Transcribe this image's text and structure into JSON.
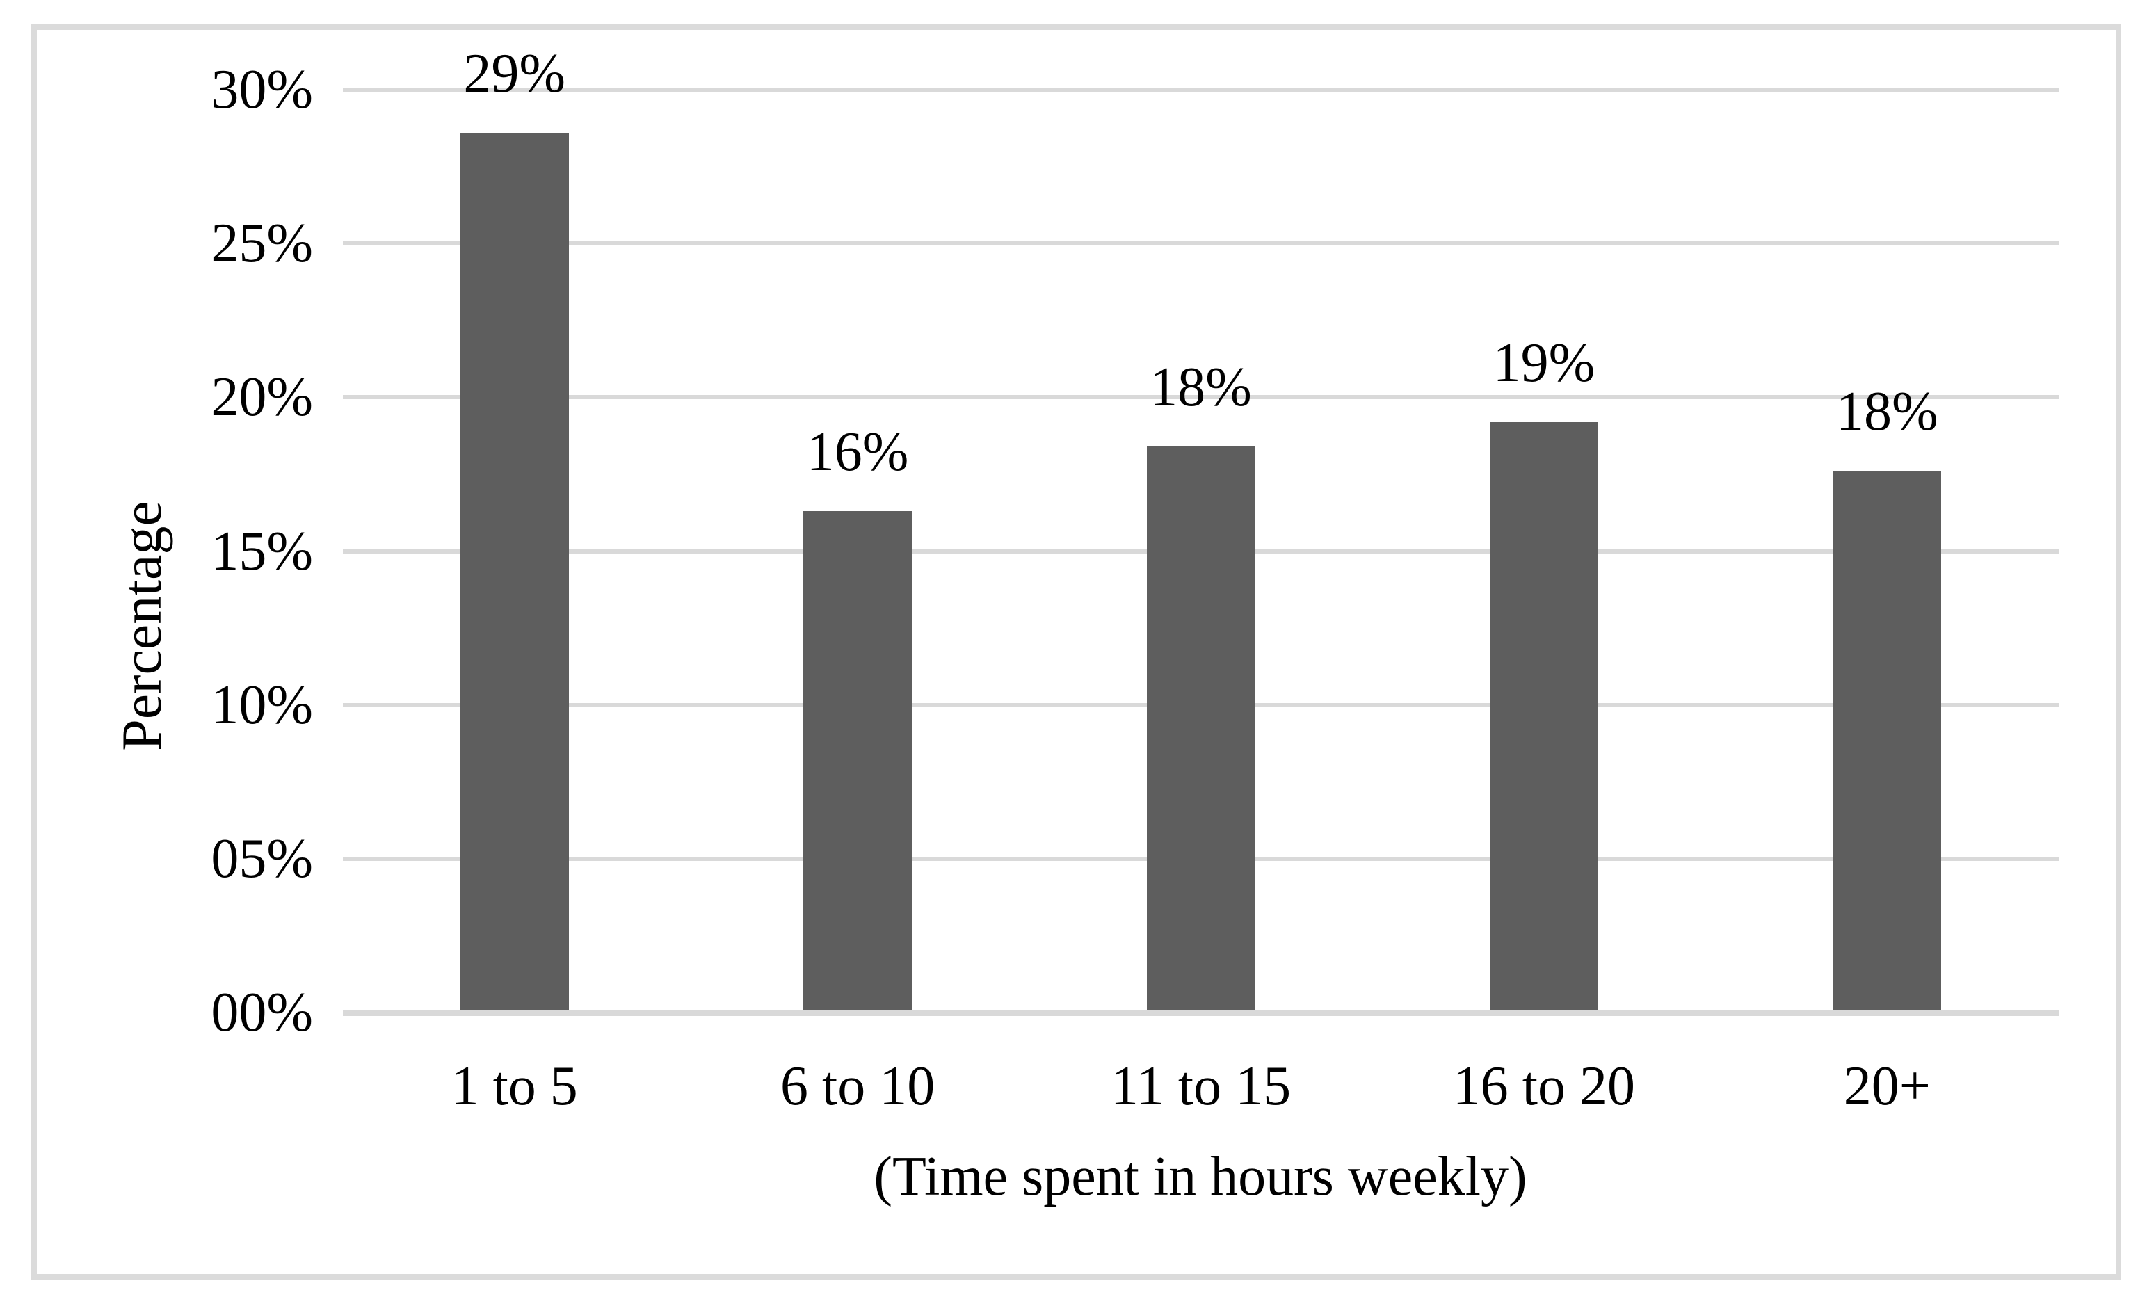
{
  "figure": {
    "background": "#FFFFFF",
    "border_color": "#DBDBDB"
  },
  "chart_data": {
    "type": "bar",
    "title": "",
    "categories": [
      "1 to 5",
      "6 to 10",
      "11 to 15",
      "16 to 20",
      "20+"
    ],
    "values": [
      29,
      16,
      18,
      19,
      18
    ],
    "data_labels": [
      "29%",
      "16%",
      "18%",
      "19%",
      "18%"
    ],
    "bar_heights_precise_pct": [
      28.6,
      16.3,
      18.4,
      19.2,
      17.6
    ],
    "xlabel": "(Time spent in hours weekly)",
    "ylabel": "Percentage",
    "ylim": [
      0,
      30
    ],
    "yticks": [
      0,
      5,
      10,
      15,
      20,
      25,
      30
    ],
    "ytick_labels": [
      "00%",
      "05%",
      "10%",
      "15%",
      "20%",
      "25%",
      "30%"
    ],
    "grid": true,
    "legend": false,
    "bar_color": "#5E5E5E",
    "gridline_color": "#D9D9D9",
    "axis_line_color": "#D9D9D9",
    "text_color": "#000000"
  }
}
